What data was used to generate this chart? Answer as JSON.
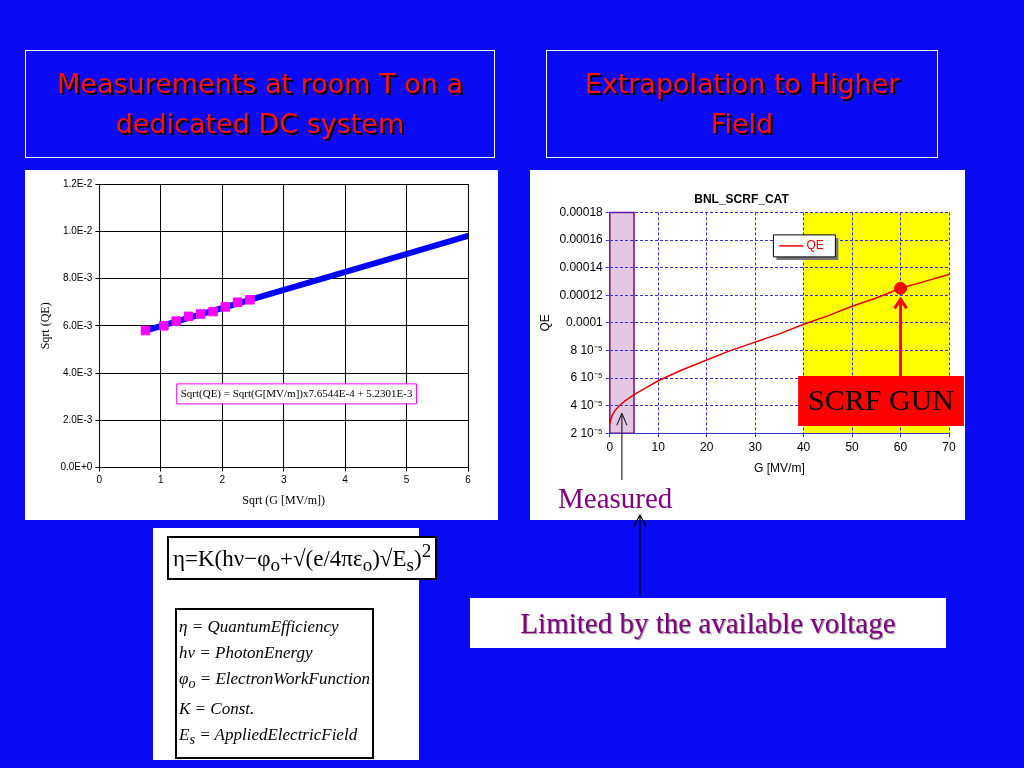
{
  "chart_data": [
    {
      "type": "scatter",
      "title": "Measurements at room T on a dedicated DC system",
      "xlabel": "Sqrt (G [MV/m])",
      "ylabel": "Sqrt (QE)",
      "series": [
        {
          "type": "scatter",
          "color": "#ff00ff",
          "marker": "square",
          "x": [
            0.75,
            1.05,
            1.25,
            1.45,
            1.65,
            1.85,
            2.05,
            2.25,
            2.45
          ],
          "values": [
            0.0058,
            0.006,
            0.0062,
            0.0064,
            0.0065,
            0.0066,
            0.0068,
            0.007,
            0.0071
          ]
        },
        {
          "type": "line",
          "color": "#0000ff",
          "marker": "none",
          "x": [
            0.75,
            6
          ],
          "values": [
            0.0058,
            0.0098
          ]
        }
      ],
      "xlim": [
        0,
        6
      ],
      "xticks": [
        0,
        1,
        2,
        3,
        4,
        5,
        6
      ],
      "ylim": [
        0,
        0.012
      ],
      "yticks": [
        {
          "value": 0,
          "label": "0.0E+0"
        },
        {
          "value": 0.002,
          "label": "2.0E-3"
        },
        {
          "value": 0.004,
          "label": "4.0E-3"
        },
        {
          "value": 0.006,
          "label": "6.0E-3"
        },
        {
          "value": 0.008,
          "label": "8.0E-3"
        },
        {
          "value": 0.01,
          "label": "1.0E-2"
        },
        {
          "value": 0.012,
          "label": "1.2E-2"
        }
      ],
      "grid": true,
      "annotations": [
        "Sqrt(QE) = Sqrt(G[MV/m])x7.6544E-4 + 5.2301E-3"
      ]
    },
    {
      "type": "line",
      "title": "Extrapolation to Higher Field",
      "subtitle": "BNL_SCRF_CAT",
      "xlabel": "G [MV/m]",
      "ylabel": "QE",
      "series": [
        {
          "name": "QE",
          "color": "#e00000",
          "x": [
            0,
            0.5,
            1,
            2,
            3,
            5,
            7,
            10,
            15,
            20,
            25,
            30,
            35,
            40,
            45,
            50,
            55,
            60,
            65,
            70
          ],
          "values": [
            2.7e-05,
            3.3e-05,
            3.6e-05,
            4e-05,
            4.3e-05,
            4.8e-05,
            5.2e-05,
            5.8e-05,
            6.6e-05,
            7.3e-05,
            8e-05,
            8.6e-05,
            9.2e-05,
            9.9e-05,
            0.000105,
            0.000112,
            0.000118,
            0.000125,
            0.00013,
            0.000135
          ]
        },
        {
          "type": "scatter",
          "color": "#ff0000",
          "marker": "circle",
          "x": [
            60
          ],
          "values": [
            0.000125
          ]
        }
      ],
      "xlim": [
        0,
        70
      ],
      "xticks": [
        0,
        10,
        20,
        30,
        40,
        50,
        60,
        70
      ],
      "ylim": [
        2e-05,
        0.00018
      ],
      "yticks": [
        {
          "value": 2e-05,
          "label": "2 10⁻⁵"
        },
        {
          "value": 4e-05,
          "label": "4 10⁻⁵"
        },
        {
          "value": 6e-05,
          "label": "6 10⁻⁵"
        },
        {
          "value": 8e-05,
          "label": "8 10⁻⁵"
        },
        {
          "value": 0.0001,
          "label": "0.0001"
        },
        {
          "value": 0.00012,
          "label": "0.00012"
        },
        {
          "value": 0.00014,
          "label": "0.00014"
        },
        {
          "value": 0.00016,
          "label": "0.00016"
        },
        {
          "value": 0.00018,
          "label": "0.00018"
        }
      ],
      "grid": true,
      "legend": "top",
      "bands": [
        {
          "axis": "x",
          "from": 40,
          "to": 70,
          "color": "#ffff00"
        },
        {
          "axis": "x",
          "from": 0,
          "to": 5,
          "label": "Measured",
          "color": "#800080"
        }
      ],
      "annotations": [
        "SCRF GUN",
        "Limited by the available voltage"
      ]
    },
    {
      "type": "other",
      "annotations": [
        "η=K(hν−φ$_{o}$+√(e/4πε$_{o}$)√E$_{s}$)$^{2}$",
        "η = QuantumEfficiency",
        "hν = PhotonEnergy",
        "φ$_{o}$ = ElectronWorkFunction",
        "K = Const.",
        "E$_{s}$ = AppliedElectricField"
      ]
    }
  ]
}
